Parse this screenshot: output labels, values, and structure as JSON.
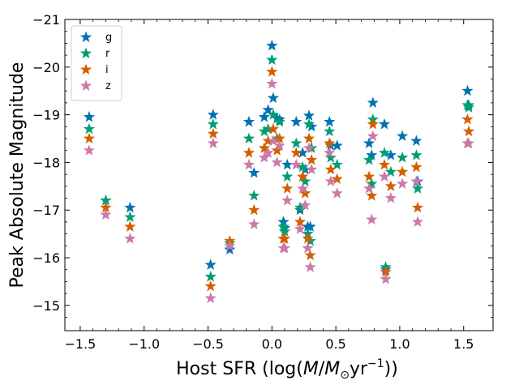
{
  "chart_data": {
    "type": "scatter",
    "title": "",
    "xlabel": "Host SFR (log(M/M⊙yr⁻¹))",
    "xlabel_parts": [
      "Host SFR (log(",
      "M",
      "/",
      "M",
      "⊙",
      "yr",
      "−1",
      "))"
    ],
    "ylabel": "Peak Absolute Magnitude",
    "xlim": [
      -1.62,
      1.73
    ],
    "ylim": [
      -14.47,
      -21.0
    ],
    "y_inverted": true,
    "xticks": [
      -1.5,
      -1.0,
      -0.5,
      0.0,
      0.5,
      1.0,
      1.5
    ],
    "xtick_labels": [
      "−1.5",
      "−1.0",
      "−0.5",
      "0.0",
      "0.5",
      "1.0",
      "1.5"
    ],
    "yticks": [
      -15,
      -16,
      -17,
      -18,
      -19,
      -20,
      -21
    ],
    "ytick_labels": [
      "−15",
      "−16",
      "−17",
      "−18",
      "−19",
      "−20",
      "−21"
    ],
    "marker": "star",
    "grid": false,
    "legend_position": "upper-left",
    "x": [
      -1.43,
      -1.3,
      -1.11,
      -0.48,
      -0.46,
      -0.33,
      -0.18,
      -0.14,
      -0.06,
      -0.03,
      0.0,
      0.01,
      0.04,
      0.06,
      0.09,
      0.1,
      0.12,
      0.19,
      0.22,
      0.24,
      0.26,
      0.28,
      0.29,
      0.3,
      0.31,
      0.45,
      0.46,
      0.51,
      0.76,
      0.78,
      0.79,
      0.88,
      0.89,
      0.93,
      1.02,
      1.13,
      1.14,
      1.53,
      1.54
    ],
    "series": [
      {
        "name": "g",
        "color": "#0072b2",
        "values": [
          -18.95,
          -17.2,
          -17.05,
          -15.85,
          -19.0,
          -16.17,
          -18.85,
          -17.78,
          -18.95,
          -19.1,
          -20.45,
          -19.35,
          -18.92,
          -18.9,
          -16.75,
          -16.62,
          -17.95,
          -18.85,
          -17.0,
          -18.2,
          -17.85,
          -16.65,
          -18.98,
          -16.65,
          -18.75,
          -18.85,
          -18.35,
          -18.35,
          -18.4,
          -18.15,
          -19.25,
          -18.8,
          -15.75,
          -18.15,
          -18.55,
          -18.45,
          -17.6,
          -19.5,
          -19.2
        ]
      },
      {
        "name": "r",
        "color": "#009e73",
        "values": [
          -18.7,
          -17.2,
          -16.85,
          -15.6,
          -18.8,
          -16.3,
          -18.5,
          -17.3,
          -18.65,
          -18.7,
          -20.15,
          -19.0,
          -18.5,
          -18.85,
          -16.65,
          -16.55,
          -17.7,
          -18.4,
          -17.05,
          -17.9,
          -17.6,
          -16.5,
          -18.8,
          -16.35,
          -18.3,
          -18.65,
          -18.1,
          -17.95,
          -18.05,
          -17.55,
          -18.9,
          -18.2,
          -15.8,
          -17.8,
          -18.1,
          -18.15,
          -17.45,
          -19.2,
          -19.15
        ]
      },
      {
        "name": "i",
        "color": "#d55e00",
        "values": [
          -18.5,
          -17.05,
          -16.65,
          -15.4,
          -18.6,
          -16.35,
          -18.2,
          -17.0,
          -18.3,
          -18.45,
          -19.9,
          -18.7,
          -18.25,
          -18.5,
          -16.4,
          -16.4,
          -17.45,
          -18.2,
          -16.75,
          -17.7,
          -17.35,
          -16.4,
          -18.5,
          -16.05,
          -18.05,
          -18.4,
          -17.85,
          -17.65,
          -17.7,
          -17.3,
          -18.8,
          -17.95,
          -15.7,
          -17.5,
          -17.8,
          -17.9,
          -17.05,
          -18.9,
          -18.65
        ]
      },
      {
        "name": "z",
        "color": "#cc79a7",
        "values": [
          -18.25,
          -16.9,
          -16.4,
          -15.15,
          -18.4,
          -16.25,
          -17.95,
          -16.7,
          -18.1,
          -18.2,
          -19.65,
          -18.45,
          -18.0,
          -18.35,
          -16.2,
          -16.2,
          -17.2,
          -17.95,
          -16.6,
          -17.45,
          -17.1,
          -16.2,
          -18.3,
          -15.8,
          -17.85,
          -18.2,
          -17.6,
          -17.35,
          -17.45,
          -16.8,
          -18.55,
          -17.7,
          -15.55,
          -17.25,
          -17.55,
          -17.6,
          -16.75,
          -18.4,
          -18.4
        ]
      }
    ]
  }
}
